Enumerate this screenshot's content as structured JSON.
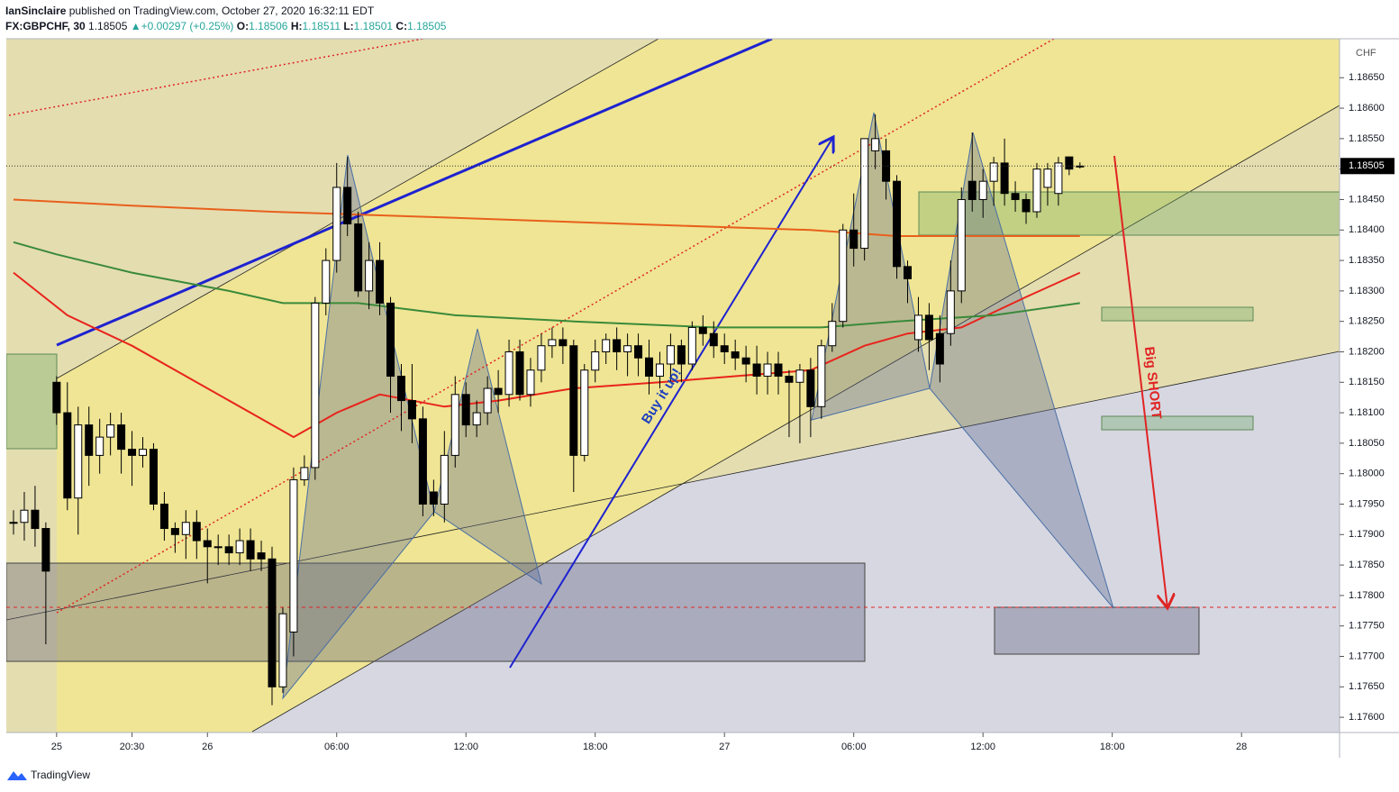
{
  "header": {
    "author": "IanSinclaire",
    "published": "published on TradingView.com, October 27, 2020 16:32:11 EDT",
    "symbol": "FX:GBPCHF, 30",
    "last": "1.18505",
    "arrow": "▲",
    "change": "+0.00297 (+0.25%)",
    "ohlc": [
      {
        "label": "O:",
        "value": "1.18506"
      },
      {
        "label": "H:",
        "value": "1.18511"
      },
      {
        "label": "L:",
        "value": "1.18501"
      },
      {
        "label": "C:",
        "value": "1.18505"
      }
    ]
  },
  "footer": {
    "brand": "TradingView"
  },
  "chart_data": {
    "type": "candlestick",
    "currency": "CHF",
    "up_color": "#ffffff",
    "down_color": "#000000",
    "open": [
      1.1792,
      1.1792,
      1.1794,
      1.1791,
      1.1815,
      1.181,
      1.1796,
      1.1808,
      1.1803,
      1.1806,
      1.1808,
      1.1804,
      1.1803,
      1.1804,
      1.1795,
      1.1791,
      1.179,
      1.1792,
      1.1789,
      1.1788,
      1.1788,
      1.1787,
      1.1789,
      1.1787,
      1.1786,
      1.1765,
      1.1774,
      1.1799,
      1.1801,
      1.1828,
      1.1835,
      1.1847,
      1.1841,
      1.183,
      1.1835,
      1.1828,
      1.1816,
      1.1812,
      1.1809,
      1.1797,
      1.1795,
      1.1803,
      1.1813,
      1.1808,
      1.181,
      1.1814,
      1.1813,
      1.182,
      1.1813,
      1.1817,
      1.1821,
      1.1822,
      1.1821,
      1.1803,
      1.1817,
      1.182,
      1.1822,
      1.182,
      1.1821,
      1.1819,
      1.1816,
      1.1818,
      1.1821,
      1.1818,
      1.1824,
      1.1823,
      1.1821,
      1.182,
      1.1819,
      1.1818,
      1.1816,
      1.1818,
      1.1816,
      1.1815,
      1.1817,
      1.1811,
      1.1821,
      1.1825,
      1.184,
      1.1837,
      1.1853,
      1.1853,
      1.1848,
      1.1834,
      1.1822,
      1.1826,
      1.1823,
      1.1823,
      1.183,
      1.1848,
      1.1845,
      1.1848,
      1.1851,
      1.1846,
      1.1845,
      1.1843,
      1.1847,
      1.1846,
      1.1852,
      1.18505
    ],
    "high": [
      1.1794,
      1.1797,
      1.1798,
      1.1792,
      1.1816,
      1.1815,
      1.1811,
      1.1811,
      1.1809,
      1.181,
      1.181,
      1.1807,
      1.1806,
      1.1805,
      1.1797,
      1.1792,
      1.1794,
      1.1794,
      1.1791,
      1.179,
      1.179,
      1.1791,
      1.1791,
      1.1789,
      1.1788,
      1.1778,
      1.1801,
      1.1803,
      1.1829,
      1.1837,
      1.1851,
      1.1852,
      1.1843,
      1.1838,
      1.1838,
      1.1829,
      1.1818,
      1.1818,
      1.1811,
      1.1799,
      1.1807,
      1.1816,
      1.1815,
      1.1812,
      1.1816,
      1.1817,
      1.1822,
      1.1822,
      1.1819,
      1.1823,
      1.1824,
      1.1824,
      1.1822,
      1.1818,
      1.1822,
      1.1823,
      1.1824,
      1.1823,
      1.1823,
      1.1822,
      1.182,
      1.1823,
      1.1822,
      1.1825,
      1.1826,
      1.1825,
      1.1823,
      1.1822,
      1.1821,
      1.1821,
      1.182,
      1.182,
      1.1817,
      1.1818,
      1.1819,
      1.1822,
      1.1828,
      1.1841,
      1.1846,
      1.1855,
      1.1859,
      1.1855,
      1.1849,
      1.1835,
      1.1829,
      1.1828,
      1.1826,
      1.1835,
      1.1847,
      1.1856,
      1.185,
      1.1852,
      1.1855,
      1.1848,
      1.1846,
      1.1851,
      1.1851,
      1.1852,
      1.1852,
      1.18511
    ],
    "low": [
      1.179,
      1.1789,
      1.1788,
      1.1772,
      1.1808,
      1.1794,
      1.179,
      1.1798,
      1.18,
      1.1803,
      1.18,
      1.1798,
      1.1801,
      1.1794,
      1.1789,
      1.1787,
      1.1786,
      1.1786,
      1.1782,
      1.1785,
      1.1785,
      1.1785,
      1.1784,
      1.1784,
      1.1762,
      1.1764,
      1.177,
      1.1798,
      1.1799,
      1.1826,
      1.1833,
      1.1839,
      1.1829,
      1.1827,
      1.1826,
      1.181,
      1.1807,
      1.1805,
      1.1793,
      1.1793,
      1.1792,
      1.1801,
      1.1806,
      1.1806,
      1.1808,
      1.181,
      1.1811,
      1.1812,
      1.1811,
      1.1815,
      1.1819,
      1.1818,
      1.1797,
      1.1802,
      1.1815,
      1.1818,
      1.1817,
      1.1816,
      1.1816,
      1.1813,
      1.1814,
      1.1815,
      1.1815,
      1.1817,
      1.1821,
      1.1819,
      1.1818,
      1.1817,
      1.1815,
      1.1813,
      1.1813,
      1.1813,
      1.1806,
      1.1805,
      1.1806,
      1.1809,
      1.182,
      1.1824,
      1.1834,
      1.1835,
      1.185,
      1.1845,
      1.1832,
      1.1828,
      1.182,
      1.1817,
      1.1815,
      1.1821,
      1.1828,
      1.1843,
      1.1842,
      1.1844,
      1.1844,
      1.1843,
      1.1841,
      1.1842,
      1.1844,
      1.1844,
      1.1849,
      1.18501
    ],
    "close": [
      1.1792,
      1.1794,
      1.1791,
      1.1784,
      1.181,
      1.1796,
      1.1808,
      1.1803,
      1.1806,
      1.1808,
      1.1804,
      1.1803,
      1.1804,
      1.1795,
      1.1791,
      1.179,
      1.1792,
      1.1789,
      1.1788,
      1.1788,
      1.1787,
      1.1789,
      1.1786,
      1.1786,
      1.1765,
      1.1777,
      1.1799,
      1.1801,
      1.1828,
      1.1835,
      1.1847,
      1.1841,
      1.183,
      1.1835,
      1.1828,
      1.1816,
      1.1812,
      1.1809,
      1.1795,
      1.1795,
      1.1803,
      1.1813,
      1.1808,
      1.181,
      1.1814,
      1.1813,
      1.182,
      1.1813,
      1.1817,
      1.1821,
      1.1822,
      1.1821,
      1.1803,
      1.1817,
      1.182,
      1.1822,
      1.182,
      1.1821,
      1.1819,
      1.1816,
      1.1818,
      1.1821,
      1.1818,
      1.1824,
      1.1823,
      1.1821,
      1.182,
      1.1819,
      1.1818,
      1.1816,
      1.1818,
      1.1816,
      1.1815,
      1.1817,
      1.1811,
      1.1821,
      1.1825,
      1.184,
      1.1837,
      1.1855,
      1.1855,
      1.1848,
      1.1834,
      1.1832,
      1.1826,
      1.1822,
      1.1818,
      1.183,
      1.1845,
      1.1845,
      1.1848,
      1.1851,
      1.1846,
      1.1845,
      1.1843,
      1.185,
      1.185,
      1.1851,
      1.185,
      1.18505
    ],
    "overlays": [
      {
        "color": "#e8241c",
        "x": [
          0,
          5,
          11,
          23,
          26,
          30,
          34,
          40,
          45,
          52,
          60,
          67,
          74,
          79,
          83,
          88,
          94,
          99
        ],
        "values": [
          1.1833,
          1.1826,
          1.1821,
          1.1809,
          1.1806,
          1.181,
          1.1813,
          1.1811,
          1.1812,
          1.1814,
          1.1815,
          1.1816,
          1.1817,
          1.1821,
          1.1823,
          1.1824,
          1.1829,
          1.1833
        ]
      },
      {
        "color": "#3a8a3a",
        "x": [
          0,
          4,
          11,
          20,
          25,
          32,
          41,
          52,
          65,
          75,
          82,
          91,
          99
        ],
        "values": [
          1.1838,
          1.1836,
          1.1833,
          1.183,
          1.1828,
          1.1828,
          1.1826,
          1.1825,
          1.1824,
          1.1824,
          1.1825,
          1.1826,
          1.1828
        ]
      },
      {
        "color": "#e8601c",
        "x": [
          0,
          11,
          24,
          41,
          57,
          74,
          82,
          99
        ],
        "values": [
          1.1845,
          1.1844,
          1.1843,
          1.1842,
          1.1841,
          1.184,
          1.1839,
          1.1839
        ]
      }
    ],
    "xlim": [
      -0.67,
      123.1
    ],
    "xticks": [
      {
        "value": 4,
        "label": "25"
      },
      {
        "value": 11,
        "label": "20:30"
      },
      {
        "value": 18,
        "label": "26"
      },
      {
        "value": 30,
        "label": "06:00"
      },
      {
        "value": 42,
        "label": "12:00"
      },
      {
        "value": 54,
        "label": "18:00"
      },
      {
        "value": 66,
        "label": "27"
      },
      {
        "value": 78,
        "label": "06:00"
      },
      {
        "value": 90,
        "label": "12:00"
      },
      {
        "value": 102,
        "label": "18:00"
      },
      {
        "value": 114,
        "label": "28"
      }
    ],
    "ylim": [
      1.17575,
      1.18714
    ],
    "yticks": [
      {
        "value": 1.176,
        "label": "1.17600"
      },
      {
        "value": 1.1765,
        "label": "1.17650"
      },
      {
        "value": 1.177,
        "label": "1.17700"
      },
      {
        "value": 1.1775,
        "label": "1.17750"
      },
      {
        "value": 1.178,
        "label": "1.17800"
      },
      {
        "value": 1.1785,
        "label": "1.17850"
      },
      {
        "value": 1.179,
        "label": "1.17900"
      },
      {
        "value": 1.1795,
        "label": "1.17950"
      },
      {
        "value": 1.18,
        "label": "1.18000"
      },
      {
        "value": 1.1805,
        "label": "1.18050"
      },
      {
        "value": 1.181,
        "label": "1.18100"
      },
      {
        "value": 1.1815,
        "label": "1.18150"
      },
      {
        "value": 1.182,
        "label": "1.18200"
      },
      {
        "value": 1.1825,
        "label": "1.18250"
      },
      {
        "value": 1.183,
        "label": "1.18300"
      },
      {
        "value": 1.1835,
        "label": "1.18350"
      },
      {
        "value": 1.184,
        "label": "1.18400"
      },
      {
        "value": 1.1845,
        "label": "1.18450"
      },
      {
        "value": 1.185,
        "label": "1.18500"
      },
      {
        "value": 1.1855,
        "label": "1.18550"
      },
      {
        "value": 1.186,
        "label": "1.18600"
      },
      {
        "value": 1.1865,
        "label": "1.18650"
      }
    ],
    "last_price": {
      "value": 1.18505,
      "label": "1.18505"
    },
    "annotations": [
      "Buy it up!",
      "Big SHORT"
    ]
  }
}
